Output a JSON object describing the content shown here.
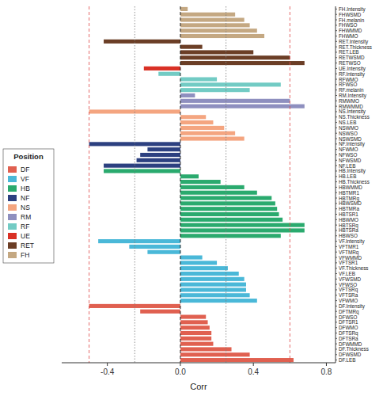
{
  "chart_data": {
    "type": "bar",
    "orientation": "horizontal",
    "x_label": "Corr",
    "categories": [
      "FH.Intensity",
      "FHWSMD",
      "FH.melanin",
      "FHWSO",
      "FHWMMD",
      "FHWMO",
      "RET.Intensity",
      "RET.Thickness",
      "RET.LEB",
      "RETWSMD",
      "RETWSO",
      "UE.Intensity",
      "RF.Intensity",
      "RFWMO",
      "RFWSO",
      "RF.melanin",
      "RM.Intensity",
      "RMWMO",
      "RMWMMD",
      "NS.Intensity",
      "NS.Thickness",
      "NS.LEB",
      "NSWMO",
      "NSWSO",
      "NSWSMD",
      "NF.Intensity",
      "NFWMO",
      "NFWSO",
      "NFWSMD",
      "NF.LEB",
      "HB.Intensity",
      "HB.LEB",
      "HB.Thickness",
      "HBWMMD",
      "HBTMR1",
      "HBTMRq",
      "HBWSMD",
      "HBTMRa",
      "HBTSR1",
      "HBWMO",
      "HBTSRq",
      "HBTSRa",
      "HBWSO",
      "VF.Intensity",
      "VFTMR1",
      "VFTMRq",
      "VFWMMD",
      "VFTSR1",
      "VF.Thickness",
      "VF.LEB",
      "VFWSMD",
      "VFWSO",
      "VFTSRq",
      "VFTSRa",
      "VFWMO",
      "DF.Intensity",
      "DFTMRq",
      "DFWSO",
      "DFTSR1",
      "DFWMO",
      "DFTSRq",
      "DFTSRa",
      "DFWMMD",
      "DF.Thickness",
      "DFWSMD",
      "DF.LEB"
    ],
    "values": [
      0.04,
      0.3,
      0.35,
      0.38,
      0.42,
      0.46,
      -0.42,
      0.12,
      0.4,
      0.6,
      0.68,
      -0.2,
      -0.12,
      0.2,
      0.55,
      0.38,
      0.08,
      0.6,
      0.68,
      -0.5,
      0.14,
      0.18,
      0.24,
      0.3,
      0.35,
      -0.5,
      -0.18,
      -0.22,
      -0.24,
      -0.42,
      -0.42,
      0.1,
      0.22,
      0.35,
      0.42,
      0.5,
      0.52,
      0.53,
      0.54,
      0.56,
      0.68,
      0.68,
      0.55,
      -0.45,
      -0.28,
      -0.18,
      0.12,
      0.2,
      0.26,
      0.32,
      0.35,
      0.36,
      0.36,
      0.38,
      0.42,
      -0.5,
      -0.22,
      0.14,
      0.15,
      0.16,
      0.17,
      0.17,
      0.18,
      0.28,
      0.38,
      0.62
    ],
    "colors": [
      "#c4a882",
      "#c4a882",
      "#c4a882",
      "#c4a882",
      "#c4a882",
      "#c4a882",
      "#6b3e26",
      "#6b3e26",
      "#6b3e26",
      "#6b3e26",
      "#6b3e26",
      "#d93025",
      "#72cbc4",
      "#72cbc4",
      "#72cbc4",
      "#72cbc4",
      "#8e8fbf",
      "#8e8fbf",
      "#8e8fbf",
      "#f4a580",
      "#f4a580",
      "#f4a580",
      "#f4a580",
      "#f4a580",
      "#f4a580",
      "#2c4080",
      "#2c4080",
      "#2c4080",
      "#2c4080",
      "#2c4080",
      "#2aaa6e",
      "#2aaa6e",
      "#2aaa6e",
      "#2aaa6e",
      "#2aaa6e",
      "#2aaa6e",
      "#2aaa6e",
      "#2aaa6e",
      "#2aaa6e",
      "#2aaa6e",
      "#2aaa6e",
      "#2aaa6e",
      "#2aaa6e",
      "#4ab8d8",
      "#4ab8d8",
      "#4ab8d8",
      "#4ab8d8",
      "#4ab8d8",
      "#4ab8d8",
      "#4ab8d8",
      "#4ab8d8",
      "#4ab8d8",
      "#4ab8d8",
      "#4ab8d8",
      "#4ab8d8",
      "#e06050",
      "#e06050",
      "#e06050",
      "#e06050",
      "#e06050",
      "#e06050",
      "#e06050",
      "#e06050",
      "#e06050",
      "#e06050",
      "#e06050"
    ],
    "xlim": [
      -0.65,
      0.85
    ],
    "xticks": [
      -0.4,
      {
        "value": 0,
        "label": "0.0"
      },
      0.4,
      0.8
    ],
    "grid": false,
    "legend": "upper left",
    "legend_title": "Position",
    "legend_entries": [
      {
        "name": "DF",
        "color": "#e06050"
      },
      {
        "name": "VF",
        "color": "#4ab8d8"
      },
      {
        "name": "HB",
        "color": "#2aaa6e"
      },
      {
        "name": "NF",
        "color": "#2c4080"
      },
      {
        "name": "NS",
        "color": "#f4a580"
      },
      {
        "name": "RM",
        "color": "#8e8fbf"
      },
      {
        "name": "RF",
        "color": "#72cbc4"
      },
      {
        "name": "UE",
        "color": "#d93025"
      },
      {
        "name": "RET",
        "color": "#6b3e26"
      },
      {
        "name": "FH",
        "color": "#c4a882"
      }
    ],
    "reference_lines": [
      {
        "value": -0.25,
        "color": "grey",
        "line_style": "dotted"
      },
      {
        "value": 0.25,
        "color": "grey",
        "line_style": "dotted"
      },
      {
        "value": 0.0,
        "color": "black",
        "line_style": "dashed"
      },
      {
        "value": -0.5,
        "color": "#e05050",
        "line_style": "dashed"
      },
      {
        "value": 0.6,
        "color": "#e05050",
        "line_style": "dashed"
      }
    ]
  }
}
